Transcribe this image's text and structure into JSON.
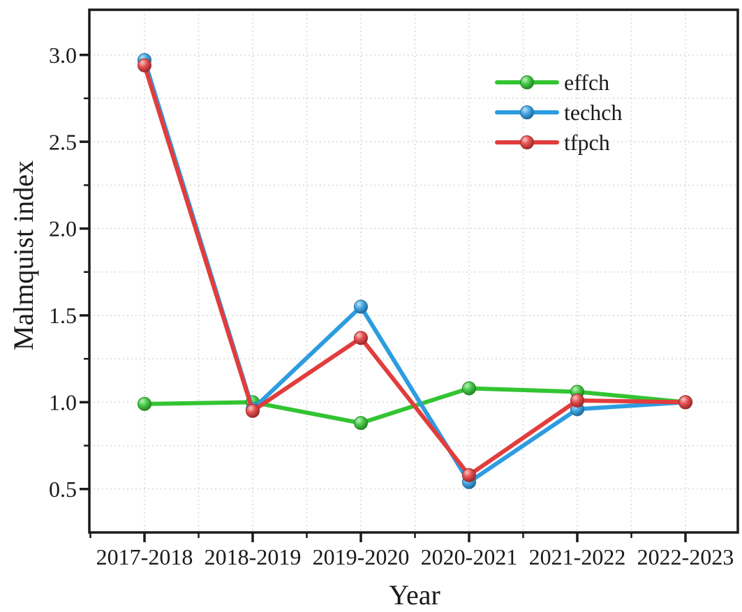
{
  "chart_data": {
    "type": "line",
    "title": "",
    "xlabel": "Year",
    "ylabel": "Malmquist index",
    "categories": [
      "2017-2018",
      "2018-2019",
      "2019-2020",
      "2020-2021",
      "2021-2022",
      "2022-2023"
    ],
    "series": [
      {
        "name": "effch",
        "color": "#33c433",
        "values": [
          0.99,
          1.0,
          0.88,
          1.08,
          1.06,
          1.0
        ]
      },
      {
        "name": "techch",
        "color": "#2d9ce0",
        "values": [
          2.97,
          0.96,
          1.55,
          0.54,
          0.96,
          1.0
        ]
      },
      {
        "name": "tfpch",
        "color": "#e23c3c",
        "values": [
          2.94,
          0.95,
          1.37,
          0.58,
          1.01,
          1.0
        ]
      }
    ],
    "ytick_labels": [
      "0.5",
      "1.0",
      "1.5",
      "2.0",
      "2.5",
      "3.0"
    ],
    "yticks": [
      0.5,
      1.0,
      1.5,
      2.0,
      2.5,
      3.0
    ],
    "ylim": [
      0.25,
      3.26
    ],
    "grid": "dotted light-gray gridlines at major and minor ticks, both axes",
    "legend_position": "inside upper right, no border",
    "legend_entries": [
      "effch",
      "techch",
      "tfpch"
    ],
    "marker_style": "3d sphere",
    "frame_color": "#1a1a1a",
    "grid_color": "#d8d8d8"
  }
}
